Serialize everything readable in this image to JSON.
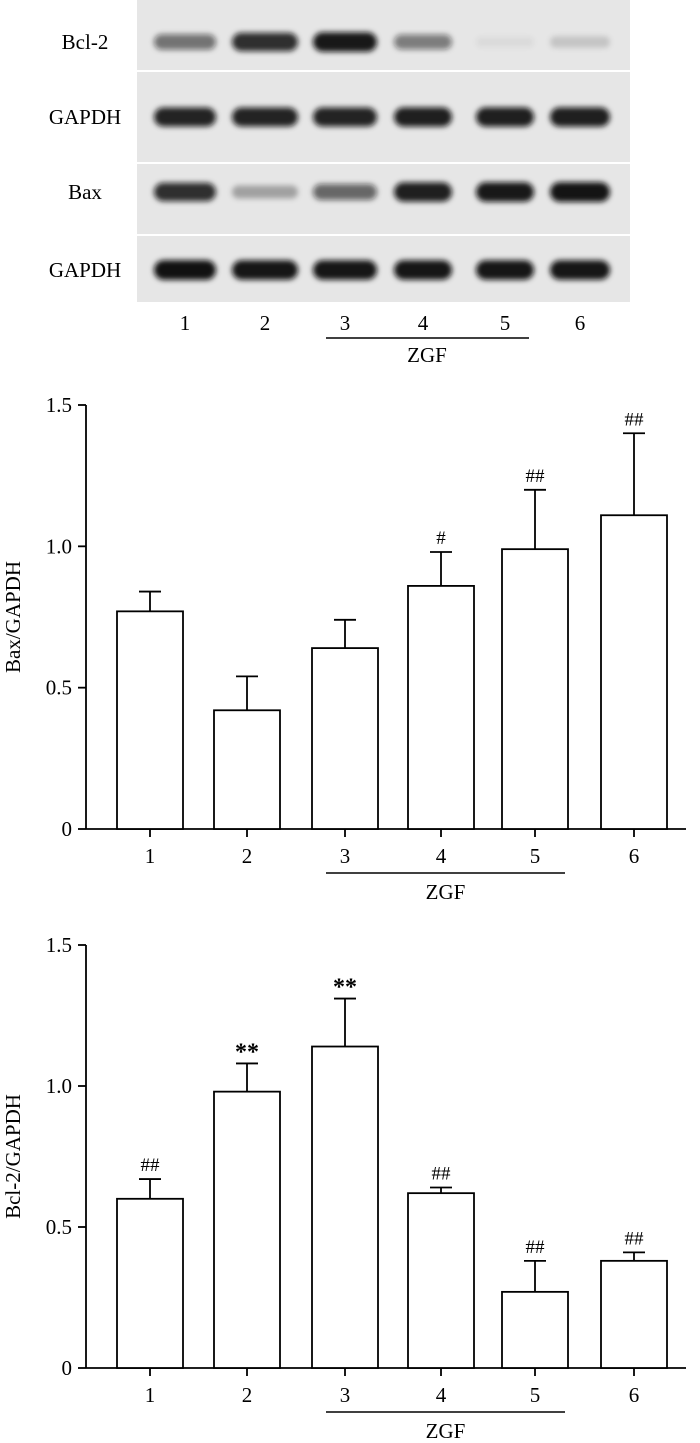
{
  "blot": {
    "bands": [
      "Bcl-2",
      "GAPDH",
      "Bax",
      "GAPDH"
    ],
    "band_intensity": [
      [
        0.55,
        0.85,
        0.95,
        0.5,
        0.04,
        0.15
      ],
      [
        0.9,
        0.9,
        0.9,
        0.92,
        0.92,
        0.92
      ],
      [
        0.85,
        0.3,
        0.6,
        0.92,
        0.95,
        0.97
      ],
      [
        0.98,
        0.96,
        0.96,
        0.96,
        0.96,
        0.96
      ]
    ],
    "lanes": [
      "1",
      "2",
      "3",
      "4",
      "5",
      "6"
    ],
    "group_label": "ZGF"
  },
  "chart_data": [
    {
      "type": "bar",
      "categories": [
        "1",
        "2",
        "3",
        "4",
        "5",
        "6"
      ],
      "values": [
        0.77,
        0.42,
        0.64,
        0.86,
        0.99,
        1.11
      ],
      "errors": [
        0.07,
        0.12,
        0.1,
        0.12,
        0.21,
        0.29
      ],
      "markers": [
        "",
        "",
        "",
        "#",
        "##",
        "##"
      ],
      "ylabel": "Bax/GAPDH",
      "ylim": [
        0,
        1.5
      ],
      "yticks": [
        "0",
        "0.5",
        "1.0",
        "1.5"
      ],
      "group_label": "ZGF",
      "grid": false
    },
    {
      "type": "bar",
      "categories": [
        "1",
        "2",
        "3",
        "4",
        "5",
        "6"
      ],
      "values": [
        0.6,
        0.98,
        1.14,
        0.62,
        0.27,
        0.38
      ],
      "errors": [
        0.07,
        0.1,
        0.17,
        0.02,
        0.11,
        0.03
      ],
      "markers": [
        "##",
        "**",
        "**",
        "##",
        "##",
        "##"
      ],
      "ylabel": "Bcl-2/GAPDH",
      "ylim": [
        0,
        1.5
      ],
      "yticks": [
        "0",
        "0.5",
        "1.0",
        "1.5"
      ],
      "group_label": "ZGF",
      "grid": false
    }
  ]
}
